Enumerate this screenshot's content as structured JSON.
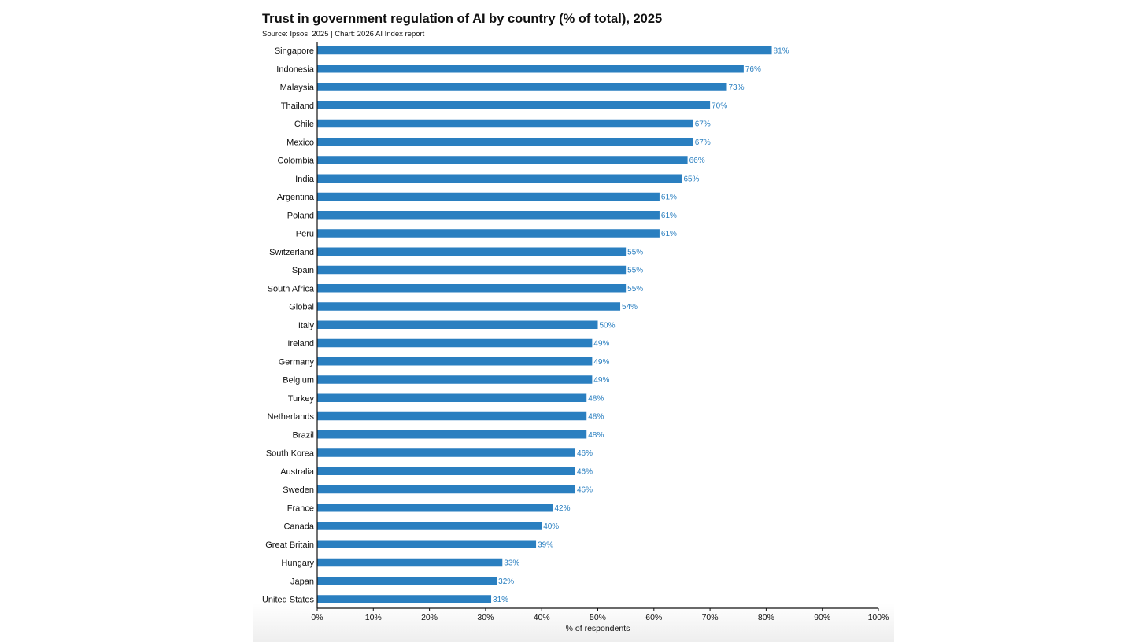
{
  "chart_data": {
    "type": "bar",
    "orientation": "horizontal",
    "title": "Trust in government regulation of AI by country (% of total), 2025",
    "subtitle": "Source: Ipsos, 2025 | Chart: 2026 AI Index report",
    "xlabel": "% of respondents",
    "ylabel": "",
    "xlim": [
      0,
      100
    ],
    "xticks": [
      0,
      10,
      20,
      30,
      40,
      50,
      60,
      70,
      80,
      90,
      100
    ],
    "xtick_labels": [
      "0%",
      "10%",
      "20%",
      "30%",
      "40%",
      "50%",
      "60%",
      "70%",
      "80%",
      "90%",
      "100%"
    ],
    "grid": false,
    "categories": [
      "Singapore",
      "Indonesia",
      "Malaysia",
      "Thailand",
      "Chile",
      "Mexico",
      "Colombia",
      "India",
      "Argentina",
      "Poland",
      "Peru",
      "Switzerland",
      "Spain",
      "South Africa",
      "Global",
      "Italy",
      "Ireland",
      "Germany",
      "Belgium",
      "Turkey",
      "Netherlands",
      "Brazil",
      "South Korea",
      "Australia",
      "Sweden",
      "France",
      "Canada",
      "Great Britain",
      "Hungary",
      "Japan",
      "United States"
    ],
    "values": [
      81,
      76,
      73,
      70,
      67,
      67,
      66,
      65,
      61,
      61,
      61,
      55,
      55,
      55,
      54,
      50,
      49,
      49,
      49,
      48,
      48,
      48,
      46,
      46,
      46,
      42,
      40,
      39,
      33,
      32,
      31
    ],
    "value_labels": [
      "81%",
      "76%",
      "73%",
      "70%",
      "67%",
      "67%",
      "66%",
      "65%",
      "61%",
      "61%",
      "61%",
      "55%",
      "55%",
      "55%",
      "54%",
      "50%",
      "49%",
      "49%",
      "49%",
      "48%",
      "48%",
      "48%",
      "46%",
      "46%",
      "46%",
      "42%",
      "40%",
      "39%",
      "33%",
      "32%",
      "31%"
    ],
    "bar_color": "#2a7fc0",
    "label_color": "#2a7fc0"
  }
}
